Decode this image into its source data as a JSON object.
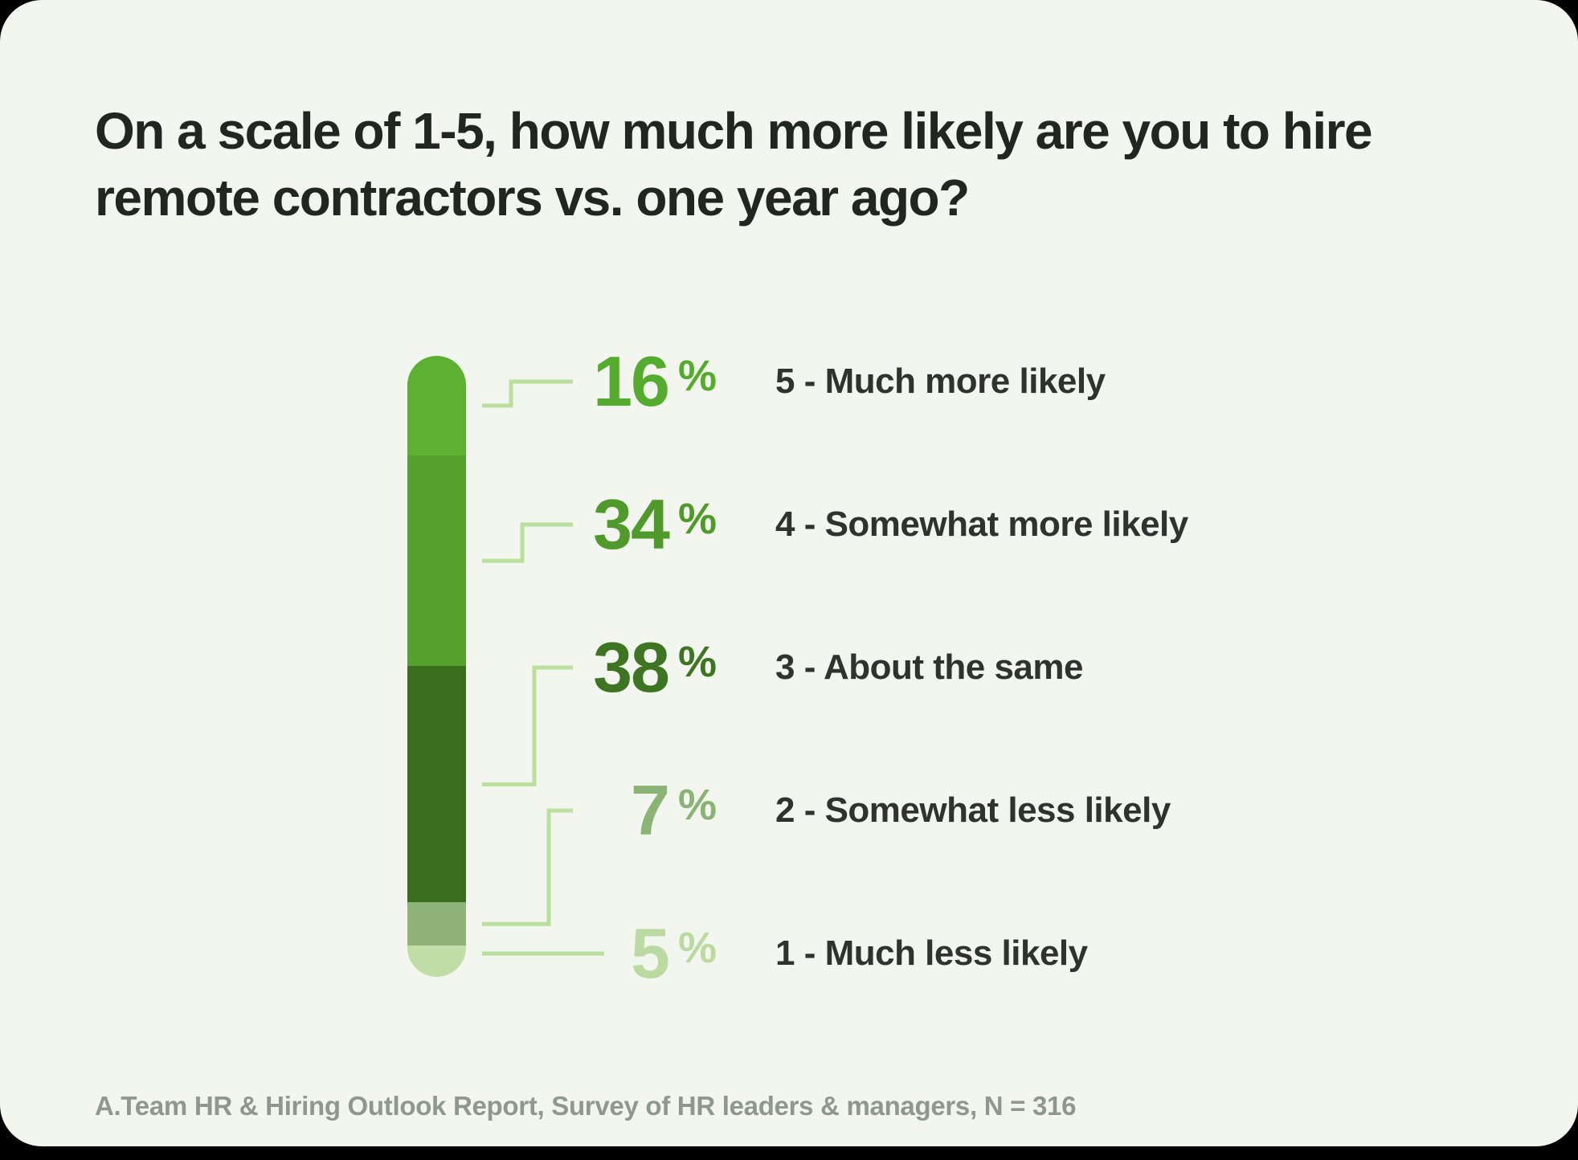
{
  "title": {
    "line1": "On a scale of 1-5, how much more likely are you to hire",
    "line2": "remote contractors vs. one year ago?"
  },
  "source_note": "A.Team HR & Hiring Outlook Report, Survey of HR leaders & managers, N = 316",
  "colors": {
    "page_bg": "#000000",
    "card_bg": "#f2f6ee",
    "title_text": "#212620",
    "label_text": "#2e3330",
    "source_text": "#8e988e",
    "connector_line": "#b9e09c"
  },
  "chart_data": {
    "type": "bar",
    "subtype": "single-stacked-vertical-bar",
    "unit": "%",
    "title": "On a scale of 1-5, how much more likely are you to hire remote contractors vs. one year ago?",
    "source": "A.Team HR & Hiring Outlook Report, Survey of HR leaders & managers, N = 316",
    "legend": "none",
    "axes": "none",
    "total": 100,
    "series": [
      {
        "rating": "5",
        "label": "5 - Much more likely",
        "value": 16,
        "bar_color": "#5cb132",
        "number_color": "#54ab2d"
      },
      {
        "rating": "4",
        "label": "4 - Somewhat more likely",
        "value": 34,
        "bar_color": "#56a02d",
        "number_color": "#4f9a2b"
      },
      {
        "rating": "3",
        "label": "3 - About the same",
        "value": 38,
        "bar_color": "#3b6d1f",
        "number_color": "#3e7522"
      },
      {
        "rating": "2",
        "label": "2 - Somewhat less likely",
        "value": 7,
        "bar_color": "#8fb279",
        "number_color": "#8cb376"
      },
      {
        "rating": "1",
        "label": "1 - Much less likely",
        "value": 5,
        "bar_color": "#bfdda6",
        "number_color": "#badaa2"
      }
    ]
  }
}
